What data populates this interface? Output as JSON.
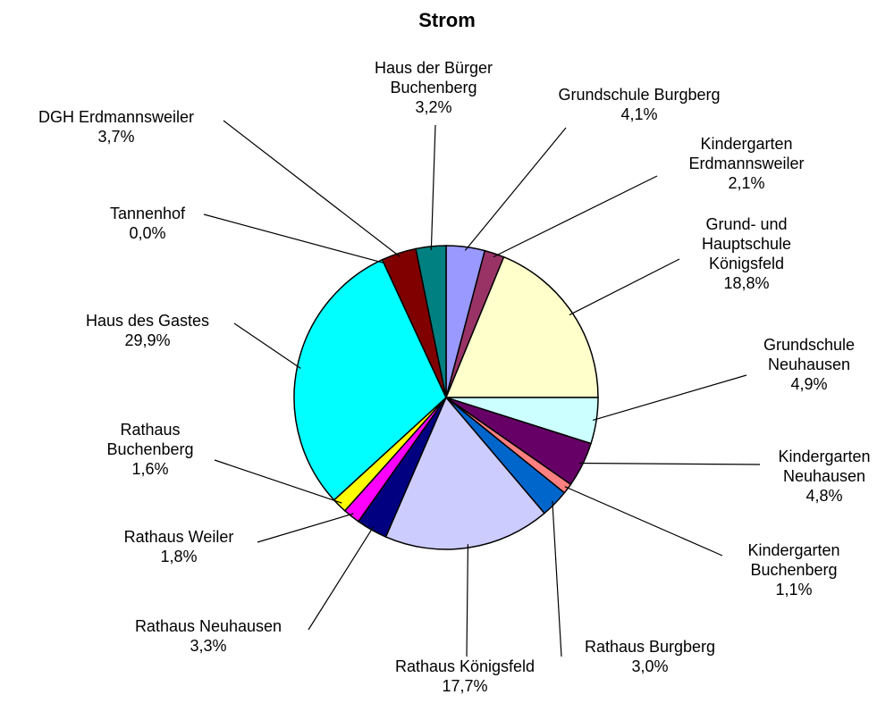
{
  "chart_data": {
    "type": "pie",
    "title": "Strom",
    "categories": [
      "Grundschule Burgberg",
      "Kindergarten\nErdmannsweiler",
      "Grund- und\nHauptschule\nKönigsfeld",
      "Grundschule\nNeuhausen",
      "Kindergarten\nNeuhausen",
      "Kindergarten\nBuchenberg",
      "Rathaus Burgberg",
      "Rathaus Königsfeld",
      "Rathaus Neuhausen",
      "Rathaus Weiler",
      "Rathaus\nBuchenberg",
      "Haus des Gastes",
      "Tannenhof",
      "DGH Erdmannsweiler",
      "Haus der Bürger\nBuchenberg"
    ],
    "values": [
      4.1,
      2.1,
      18.8,
      4.9,
      4.8,
      1.1,
      3.0,
      17.7,
      3.3,
      1.8,
      1.6,
      29.9,
      0.0,
      3.7,
      3.2
    ],
    "value_labels": [
      "4,1%",
      "2,1%",
      "18,8%",
      "4,9%",
      "4,8%",
      "1,1%",
      "3,0%",
      "17,7%",
      "3,3%",
      "1,8%",
      "1,6%",
      "29,9%",
      "0,0%",
      "3,7%",
      "3,2%"
    ],
    "colors": [
      "#9999ff",
      "#993366",
      "#ffffcc",
      "#ccffff",
      "#660066",
      "#ff8080",
      "#0066cc",
      "#ccccff",
      "#000080",
      "#ff00ff",
      "#ffff00",
      "#00ffff",
      "#339966",
      "#800000",
      "#008080"
    ]
  }
}
